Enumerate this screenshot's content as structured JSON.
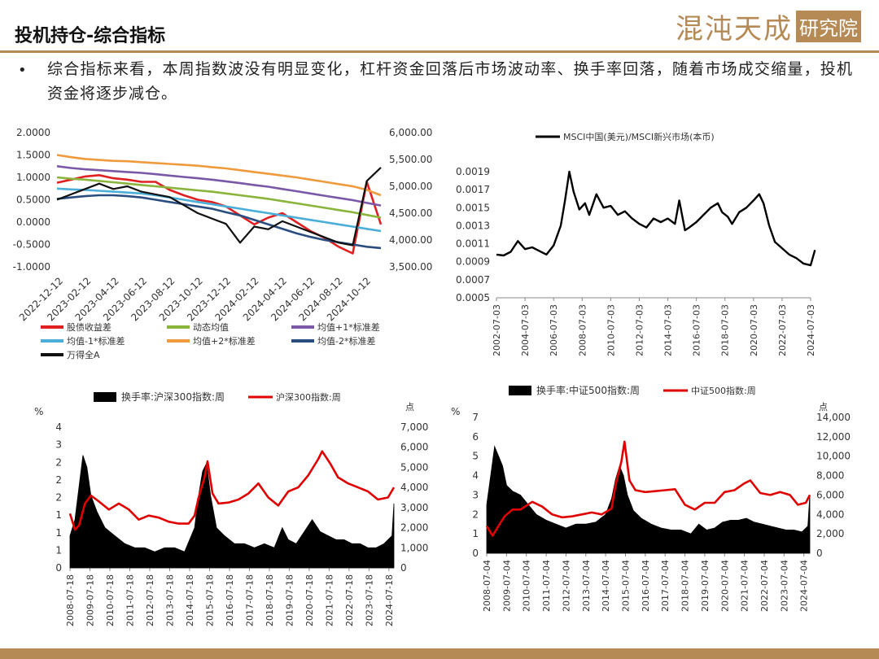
{
  "header": {
    "title": "投机持仓-综合指标",
    "logo_text": "混沌天成",
    "logo_box_text": "研究院"
  },
  "bullet": "综合指标来看，本周指数波没有明显变化，杠杆资金回落后市场波动率、换手率回落，随着市场成交缩量，投机资金将逐步减仓。",
  "colors": {
    "brand": "#b58a55"
  },
  "chart_data": [
    {
      "type": "line",
      "x_ticks": [
        "2022-12-12",
        "2023-02-12",
        "2023-04-12",
        "2023-06-12",
        "2023-08-12",
        "2023-10-12",
        "2023-12-12",
        "2024-02-12",
        "2024-04-12",
        "2024-06-12",
        "2024-08-12",
        "2024-10-12"
      ],
      "y_left_ticks": [
        "2.0000",
        "1.5000",
        "1.0000",
        "0.5000",
        "0.0000",
        "-0.5000",
        "-1.0000"
      ],
      "y_right_ticks": [
        "6,000.00",
        "5,500.00",
        "5,000.00",
        "4,500.00",
        "4,000.00",
        "3,500.00"
      ],
      "ylim_left": [
        -1.0,
        2.0
      ],
      "ylim_right": [
        3500,
        6000
      ],
      "legend": [
        "股债收益差",
        "动态均值",
        "均值+1*标准差",
        "均值-1*标准差",
        "均值+2*标准差",
        "均值-2*标准差",
        "万得全A"
      ],
      "series": [
        {
          "name": "股债收益差",
          "color": "#e02020",
          "axis": "left",
          "values": [
            0.88,
            0.95,
            1.02,
            1.05,
            0.98,
            0.95,
            0.9,
            0.9,
            0.72,
            0.6,
            0.5,
            0.45,
            0.35,
            0.15,
            -0.05,
            0.1,
            0.2,
            0.0,
            -0.2,
            -0.35,
            -0.55,
            -0.7,
            0.9,
            -0.05
          ]
        },
        {
          "name": "动态均值",
          "color": "#8ab43c",
          "axis": "left",
          "values": [
            1.0,
            0.97,
            0.95,
            0.92,
            0.89,
            0.86,
            0.83,
            0.8,
            0.77,
            0.74,
            0.71,
            0.68,
            0.64,
            0.6,
            0.56,
            0.52,
            0.47,
            0.42,
            0.37,
            0.32,
            0.27,
            0.22,
            0.16,
            0.1
          ]
        },
        {
          "name": "均值+1*标准差",
          "color": "#7a58a8",
          "axis": "left",
          "values": [
            1.25,
            1.21,
            1.18,
            1.16,
            1.14,
            1.12,
            1.1,
            1.07,
            1.04,
            1.01,
            0.98,
            0.95,
            0.91,
            0.87,
            0.83,
            0.79,
            0.74,
            0.69,
            0.64,
            0.59,
            0.54,
            0.49,
            0.43,
            0.37
          ]
        },
        {
          "name": "均值-1*标准差",
          "color": "#4aaed8",
          "axis": "left",
          "values": [
            0.75,
            0.73,
            0.72,
            0.7,
            0.68,
            0.66,
            0.64,
            0.6,
            0.55,
            0.5,
            0.45,
            0.4,
            0.35,
            0.3,
            0.25,
            0.2,
            0.15,
            0.1,
            0.05,
            0.0,
            -0.05,
            -0.1,
            -0.15,
            -0.2
          ]
        },
        {
          "name": "均值+2*标准差",
          "color": "#f09a3e",
          "axis": "left",
          "values": [
            1.5,
            1.45,
            1.41,
            1.39,
            1.37,
            1.36,
            1.34,
            1.32,
            1.3,
            1.28,
            1.26,
            1.23,
            1.2,
            1.16,
            1.12,
            1.08,
            1.04,
            1.0,
            0.95,
            0.9,
            0.85,
            0.8,
            0.72,
            0.6
          ]
        },
        {
          "name": "均值-2*标准差",
          "color": "#2a4d80",
          "axis": "left",
          "values": [
            0.52,
            0.55,
            0.58,
            0.6,
            0.6,
            0.58,
            0.55,
            0.5,
            0.45,
            0.4,
            0.35,
            0.3,
            0.22,
            0.15,
            0.05,
            -0.05,
            -0.15,
            -0.25,
            -0.33,
            -0.4,
            -0.45,
            -0.5,
            -0.55,
            -0.58
          ]
        },
        {
          "name": "万得全A",
          "color": "#111111",
          "axis": "right",
          "values": [
            4750,
            4850,
            4950,
            5050,
            4950,
            5000,
            4900,
            4850,
            4800,
            4650,
            4500,
            4400,
            4300,
            3950,
            4250,
            4200,
            4350,
            4250,
            4150,
            4050,
            3950,
            3900,
            5100,
            5350
          ]
        }
      ]
    },
    {
      "type": "line",
      "legend": [
        "MSCI中国(美元)/MSCI新兴市场(本币)"
      ],
      "x_ticks": [
        "2002-07-03",
        "2004-07-03",
        "2006-07-03",
        "2008-07-03",
        "2010-07-03",
        "2012-07-03",
        "2014-07-03",
        "2016-07-03",
        "2018-07-03",
        "2020-07-03",
        "2022-07-03",
        "2024-07-03"
      ],
      "y_ticks": [
        "0.0019",
        "0.0017",
        "0.0015",
        "0.0013",
        "0.0011",
        "0.0009",
        "0.0007",
        "0.0005"
      ],
      "ylim": [
        0.0005,
        0.0019
      ],
      "series": [
        {
          "name": "MSCI中国(美元)/MSCI新兴市场(本币)",
          "color": "#000000",
          "x": [
            2002.5,
            2003.0,
            2003.5,
            2004.0,
            2004.5,
            2005.0,
            2005.5,
            2006.0,
            2006.5,
            2007.0,
            2007.3,
            2007.6,
            2007.9,
            2008.3,
            2008.7,
            2009.0,
            2009.5,
            2010.0,
            2010.5,
            2011.0,
            2011.5,
            2012.0,
            2012.5,
            2013.0,
            2013.5,
            2014.0,
            2014.5,
            2015.0,
            2015.3,
            2015.7,
            2016.0,
            2016.5,
            2017.0,
            2017.5,
            2018.0,
            2018.3,
            2018.7,
            2019.0,
            2019.5,
            2020.0,
            2020.5,
            2020.9,
            2021.2,
            2021.6,
            2022.0,
            2022.5,
            2023.0,
            2023.5,
            2024.0,
            2024.5,
            2024.8
          ],
          "y": [
            0.00098,
            0.00097,
            0.00101,
            0.00113,
            0.00104,
            0.00106,
            0.00102,
            0.00098,
            0.00108,
            0.0013,
            0.00158,
            0.0019,
            0.00168,
            0.00148,
            0.00155,
            0.00142,
            0.00165,
            0.0015,
            0.00152,
            0.00142,
            0.00146,
            0.00138,
            0.00132,
            0.00128,
            0.00138,
            0.00134,
            0.00138,
            0.00132,
            0.00158,
            0.00125,
            0.00128,
            0.00134,
            0.00142,
            0.0015,
            0.00155,
            0.00145,
            0.0014,
            0.00132,
            0.00145,
            0.0015,
            0.00158,
            0.00165,
            0.00155,
            0.0013,
            0.00112,
            0.00105,
            0.00098,
            0.00094,
            0.00088,
            0.00086,
            0.00103
          ]
        }
      ]
    },
    {
      "type": "bar+line",
      "legend": [
        "换手率:沪深300指数:周",
        "沪深300指数:周"
      ],
      "y_left_unit": "%",
      "y_right_unit": "点",
      "y_left_ticks": [
        "4",
        "3",
        "2",
        "2",
        "2",
        "1",
        "1",
        "1",
        "0"
      ],
      "y_right_ticks": [
        "7,000",
        "6,000",
        "5,000",
        "4,000",
        "3,000",
        "2,000",
        "1,000",
        "0"
      ],
      "ylim_right": [
        0,
        7000
      ],
      "x_ticks": [
        "2008-07-18",
        "2009-07-18",
        "2010-07-18",
        "2011-07-18",
        "2012-07-18",
        "2013-07-18",
        "2014-07-18",
        "2015-07-18",
        "2016-07-18",
        "2017-07-18",
        "2018-07-18",
        "2019-07-18",
        "2020-07-18",
        "2021-07-18",
        "2022-07-18",
        "2023-07-18",
        "2024-07-18"
      ],
      "x_range": [
        2008.55,
        2024.8
      ],
      "turnover": {
        "name": "换手率:沪深300指数:周",
        "color": "#000000",
        "x": [
          2008.55,
          2008.8,
          2009.0,
          2009.2,
          2009.4,
          2009.6,
          2009.9,
          2010.3,
          2010.8,
          2011.3,
          2011.8,
          2012.3,
          2012.8,
          2013.3,
          2013.8,
          2014.3,
          2014.8,
          2015.0,
          2015.2,
          2015.4,
          2015.6,
          2015.9,
          2016.3,
          2016.8,
          2017.3,
          2017.8,
          2018.3,
          2018.8,
          2019.2,
          2019.5,
          2019.9,
          2020.3,
          2020.7,
          2021.1,
          2021.5,
          2021.9,
          2022.3,
          2022.7,
          2023.1,
          2023.5,
          2023.9,
          2024.3,
          2024.7,
          2024.8
        ],
        "y": [
          0.8,
          1.2,
          2.0,
          2.8,
          2.5,
          1.8,
          1.4,
          1.0,
          0.8,
          0.6,
          0.5,
          0.5,
          0.4,
          0.5,
          0.5,
          0.4,
          1.0,
          1.8,
          2.4,
          2.6,
          1.8,
          1.0,
          0.8,
          0.6,
          0.6,
          0.5,
          0.6,
          0.5,
          1.0,
          0.7,
          0.6,
          0.9,
          1.2,
          0.9,
          0.8,
          0.7,
          0.7,
          0.6,
          0.6,
          0.5,
          0.5,
          0.6,
          0.8,
          1.6
        ]
      },
      "index": {
        "name": "沪深300指数:周",
        "color": "#e00000",
        "x": [
          2008.55,
          2008.8,
          2009.0,
          2009.3,
          2009.6,
          2010.0,
          2010.5,
          2011.0,
          2011.5,
          2012.0,
          2012.5,
          2013.0,
          2013.5,
          2014.0,
          2014.5,
          2014.8,
          2015.0,
          2015.3,
          2015.45,
          2015.7,
          2016.0,
          2016.5,
          2017.0,
          2017.5,
          2018.0,
          2018.5,
          2019.0,
          2019.5,
          2020.0,
          2020.5,
          2021.0,
          2021.2,
          2021.6,
          2022.0,
          2022.5,
          2023.0,
          2023.5,
          2024.0,
          2024.5,
          2024.8
        ],
        "y": [
          2700,
          1900,
          2100,
          3200,
          3600,
          3300,
          2900,
          3200,
          2900,
          2400,
          2600,
          2500,
          2300,
          2200,
          2200,
          2600,
          3500,
          4500,
          5300,
          3700,
          3200,
          3250,
          3400,
          3700,
          4200,
          3500,
          3100,
          3800,
          4000,
          4600,
          5400,
          5800,
          5200,
          4500,
          4200,
          4000,
          3800,
          3400,
          3500,
          4000
        ]
      }
    },
    {
      "type": "bar+line",
      "legend": [
        "换手率:中证500指数:周",
        "中证500指数:周"
      ],
      "y_left_unit": "%",
      "y_right_unit": "点",
      "y_left_ticks": [
        "7",
        "6",
        "5",
        "4",
        "3",
        "2",
        "1",
        "0"
      ],
      "y_right_ticks": [
        "14,000",
        "12,000",
        "10,000",
        "8,000",
        "6,000",
        "4,000",
        "2,000",
        "0"
      ],
      "ylim_left": [
        0,
        7
      ],
      "ylim_right": [
        0,
        14000
      ],
      "x_ticks": [
        "2008-07-04",
        "2009-07-04",
        "2010-07-04",
        "2011-07-04",
        "2012-07-04",
        "2013-07-04",
        "2014-07-04",
        "2015-07-04",
        "2016-07-04",
        "2017-07-04",
        "2018-07-04",
        "2019-07-04",
        "2020-07-04",
        "2021-07-04",
        "2022-07-04",
        "2023-07-04",
        "2024-07-04"
      ],
      "x_range": [
        2008.5,
        2024.8
      ],
      "turnover": {
        "name": "换手率:中证500指数:周",
        "color": "#000000",
        "x": [
          2008.5,
          2008.7,
          2008.9,
          2009.1,
          2009.3,
          2009.5,
          2009.8,
          2010.2,
          2010.6,
          2011.0,
          2011.5,
          2012.0,
          2012.5,
          2013.0,
          2013.5,
          2014.0,
          2014.5,
          2014.8,
          2015.0,
          2015.2,
          2015.4,
          2015.6,
          2015.9,
          2016.3,
          2016.8,
          2017.3,
          2017.8,
          2018.3,
          2018.8,
          2019.2,
          2019.6,
          2020.0,
          2020.4,
          2020.8,
          2021.2,
          2021.6,
          2022.0,
          2022.4,
          2022.8,
          2023.2,
          2023.6,
          2024.0,
          2024.4,
          2024.7,
          2024.8
        ],
        "y": [
          2.5,
          4.0,
          5.5,
          5.0,
          4.5,
          3.5,
          3.2,
          3.0,
          2.5,
          2.0,
          1.7,
          1.5,
          1.3,
          1.5,
          1.5,
          1.6,
          2.0,
          2.8,
          3.8,
          4.5,
          4.0,
          3.0,
          2.2,
          1.8,
          1.5,
          1.3,
          1.2,
          1.2,
          1.0,
          1.5,
          1.2,
          1.3,
          1.6,
          1.7,
          1.7,
          1.8,
          1.6,
          1.5,
          1.4,
          1.3,
          1.2,
          1.2,
          1.1,
          1.4,
          3.0
        ]
      },
      "index": {
        "name": "中证500指数:周",
        "color": "#e00000",
        "x": [
          2008.5,
          2008.8,
          2009.0,
          2009.4,
          2009.8,
          2010.2,
          2010.8,
          2011.3,
          2011.8,
          2012.3,
          2012.8,
          2013.3,
          2013.8,
          2014.3,
          2014.8,
          2015.0,
          2015.3,
          2015.45,
          2015.7,
          2016.0,
          2016.5,
          2017.0,
          2017.5,
          2018.0,
          2018.5,
          2019.0,
          2019.5,
          2020.0,
          2020.5,
          2021.0,
          2021.5,
          2021.8,
          2022.3,
          2022.8,
          2023.3,
          2023.8,
          2024.2,
          2024.6,
          2024.8
        ],
        "y": [
          2800,
          1800,
          2500,
          3800,
          4500,
          4500,
          5300,
          4800,
          4000,
          3700,
          3800,
          4000,
          4200,
          4000,
          4600,
          7000,
          9500,
          11500,
          7500,
          6500,
          6300,
          6400,
          6500,
          6600,
          5000,
          4500,
          5200,
          5200,
          6300,
          6500,
          7200,
          7500,
          6200,
          6000,
          6300,
          6000,
          5000,
          5200,
          6000
        ]
      }
    }
  ]
}
